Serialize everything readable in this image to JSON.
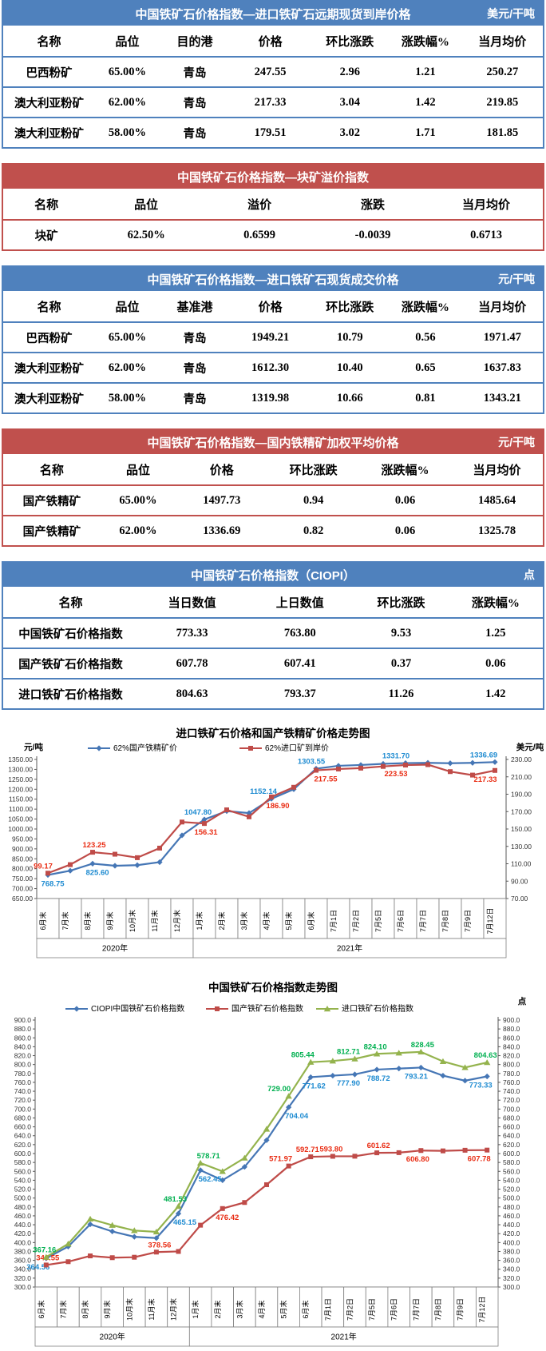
{
  "report": {
    "colors": {
      "blue_theme": "#4f81bd",
      "red_theme": "#c0504d"
    },
    "tables": [
      {
        "theme": "blue",
        "title": "中国铁矿石价格指数—进口铁矿石远期现货到岸价格",
        "unit": "美元/干吨",
        "headers": [
          "名称",
          "品位",
          "目的港",
          "价格",
          "环比涨跌",
          "涨跌幅%",
          "当月均价"
        ],
        "rows": [
          [
            "巴西粉矿",
            "65.00%",
            "青岛",
            "247.55",
            "2.96",
            "1.21",
            "250.27"
          ],
          [
            "澳大利亚粉矿",
            "62.00%",
            "青岛",
            "217.33",
            "3.04",
            "1.42",
            "219.85"
          ],
          [
            "澳大利亚粉矿",
            "58.00%",
            "青岛",
            "179.51",
            "3.02",
            "1.71",
            "181.85"
          ]
        ]
      },
      {
        "theme": "red",
        "title": "中国铁矿石价格指数—块矿溢价指数",
        "unit": "",
        "headers": [
          "名称",
          "品位",
          "溢价",
          "涨跌",
          "当月均价"
        ],
        "rows": [
          [
            "块矿",
            "62.50%",
            "0.6599",
            "-0.0039",
            "0.6713"
          ]
        ]
      },
      {
        "theme": "blue",
        "title": "中国铁矿石价格指数—进口铁矿石现货成交价格",
        "unit": "元/干吨",
        "headers": [
          "名称",
          "品位",
          "基准港",
          "价格",
          "环比涨跌",
          "涨跌幅%",
          "当月均价"
        ],
        "rows": [
          [
            "巴西粉矿",
            "65.00%",
            "青岛",
            "1949.21",
            "10.79",
            "0.56",
            "1971.47"
          ],
          [
            "澳大利亚粉矿",
            "62.00%",
            "青岛",
            "1612.30",
            "10.40",
            "0.65",
            "1637.83"
          ],
          [
            "澳大利亚粉矿",
            "58.00%",
            "青岛",
            "1319.98",
            "10.66",
            "0.81",
            "1343.21"
          ]
        ]
      },
      {
        "theme": "red",
        "title": "中国铁矿石价格指数—国内铁精矿加权平均价格",
        "unit": "元/干吨",
        "headers": [
          "名称",
          "品位",
          "价格",
          "环比涨跌",
          "涨跌幅%",
          "当月均价"
        ],
        "rows": [
          [
            "国产铁精矿",
            "65.00%",
            "1497.73",
            "0.94",
            "0.06",
            "1485.64"
          ],
          [
            "国产铁精矿",
            "62.00%",
            "1336.69",
            "0.82",
            "0.06",
            "1325.78"
          ]
        ]
      },
      {
        "theme": "blue",
        "title": "中国铁矿石价格指数（CIOPI）",
        "unit": "点",
        "headers": [
          "名称",
          "当日数值",
          "上日数值",
          "环比涨跌",
          "涨跌幅%"
        ],
        "rows": [
          [
            "中国铁矿石价格指数",
            "773.33",
            "763.80",
            "9.53",
            "1.25"
          ],
          [
            "国产铁矿石价格指数",
            "607.78",
            "607.41",
            "0.37",
            "0.06"
          ],
          [
            "进口铁矿石价格指数",
            "804.63",
            "793.37",
            "11.26",
            "1.42"
          ]
        ]
      }
    ]
  },
  "chart_data": [
    {
      "type": "line",
      "title": "进口铁矿石价格和国产铁精矿价格走势图",
      "unit_left": "元/吨",
      "unit_right": "美元/吨",
      "left_axis": {
        "min": 650,
        "max": 1350,
        "step": 50,
        "decimals": 2
      },
      "right_axis": {
        "min": 70,
        "max": 230,
        "step": 20,
        "decimals": 2
      },
      "legend_position": "top",
      "grid": false,
      "categories": [
        "6月末",
        "7月末",
        "8月末",
        "9月末",
        "10月末",
        "11月末",
        "12月末",
        "1月末",
        "2月末",
        "3月末",
        "4月末",
        "5月末",
        "6月末",
        "7月1日",
        "7月2日",
        "7月5日",
        "7月6日",
        "7月7日",
        "7月8日",
        "7月9日",
        "7月12日"
      ],
      "year_groups": [
        {
          "label": "2020年",
          "span": 7
        },
        {
          "label": "2021年",
          "span": 14
        }
      ],
      "series": [
        {
          "name": "62%国产铁精矿价",
          "axis": "left",
          "marker": "diamond",
          "color": "#4576b5",
          "label_color": "#1e8bd1",
          "values": [
            768.75,
            790,
            825.6,
            815,
            818,
            833,
            968,
            1047.8,
            1090,
            1080,
            1152.14,
            1200,
            1303.55,
            1318,
            1322,
            1328,
            1331.7,
            1333,
            1331,
            1333,
            1336.69
          ],
          "labels": [
            {
              "i": 0,
              "text": "768.75",
              "pos": "below",
              "dx": 6
            },
            {
              "i": 2,
              "text": "825.60",
              "pos": "below",
              "dx": 6
            },
            {
              "i": 7,
              "text": "1047.80",
              "pos": "above",
              "dx": -8
            },
            {
              "i": 10,
              "text": "1152.14",
              "pos": "above",
              "dx": -10
            },
            {
              "i": 12,
              "text": "1303.55",
              "pos": "above",
              "dx": -6
            },
            {
              "i": 16,
              "text": "1331.70",
              "pos": "above",
              "dx": -12
            },
            {
              "i": 20,
              "text": "1336.69",
              "pos": "above",
              "dx": -14
            }
          ]
        },
        {
          "name": "62%进口矿到岸价",
          "axis": "right",
          "marker": "square",
          "color": "#bf4b48",
          "label_color": "#e92c13",
          "values": [
            99.17,
            109,
            123.25,
            121,
            117,
            128,
            158,
            156.31,
            172,
            164,
            186.9,
            198,
            217.55,
            219,
            220,
            222,
            223.53,
            224,
            216,
            212,
            217.33
          ],
          "labels": [
            {
              "i": 0,
              "text": "99.17",
              "pos": "above",
              "dx": -6
            },
            {
              "i": 2,
              "text": "123.25",
              "pos": "above",
              "dx": 2
            },
            {
              "i": 7,
              "text": "156.31",
              "pos": "below",
              "dx": 2
            },
            {
              "i": 10,
              "text": "186.90",
              "pos": "below",
              "dx": 8
            },
            {
              "i": 12,
              "text": "217.55",
              "pos": "below",
              "dx": 12
            },
            {
              "i": 16,
              "text": "223.53",
              "pos": "below",
              "dx": -12
            },
            {
              "i": 20,
              "text": "217.33",
              "pos": "below",
              "dx": -12
            }
          ]
        }
      ]
    },
    {
      "type": "line",
      "title": "中国铁矿石价格指数走势图",
      "unit_left": "",
      "unit_right": "点",
      "left_axis": {
        "min": 300,
        "max": 900,
        "step": 20,
        "decimals": 1
      },
      "right_axis": {
        "min": 300,
        "max": 900,
        "step": 20,
        "decimals": 1
      },
      "legend_position": "top",
      "grid": false,
      "categories": [
        "6月末",
        "7月末",
        "8月末",
        "9月末",
        "10月末",
        "11月末",
        "12月末",
        "1月末",
        "2月末",
        "3月末",
        "4月末",
        "5月末",
        "6月末",
        "7月1日",
        "7月2日",
        "7月5日",
        "7月6日",
        "7月7日",
        "7月8日",
        "7月9日",
        "7月12日"
      ],
      "year_groups": [
        {
          "label": "2020年",
          "span": 7
        },
        {
          "label": "2021年",
          "span": 14
        }
      ],
      "series": [
        {
          "name": "CIOPI中国铁矿石价格指数",
          "axis": "left",
          "marker": "diamond",
          "color": "#4576b5",
          "label_color": "#1e8bd1",
          "values": [
            364.56,
            391,
            441,
            425,
            413,
            410,
            465.15,
            562.45,
            540,
            570,
            630,
            704.04,
            771.62,
            775,
            777.9,
            788.72,
            791,
            793.21,
            775,
            763.8,
            773.33
          ],
          "labels": [
            {
              "i": 0,
              "text": "364.56",
              "pos": "below",
              "dx": -10
            },
            {
              "i": 6,
              "text": "465.15",
              "pos": "below",
              "dx": 8
            },
            {
              "i": 7,
              "text": "562.45",
              "pos": "below",
              "dx": 12
            },
            {
              "i": 11,
              "text": "704.04",
              "pos": "below",
              "dx": 10
            },
            {
              "i": 12,
              "text": "771.62",
              "pos": "below",
              "dx": 4
            },
            {
              "i": 14,
              "text": "777.90",
              "pos": "below",
              "dx": -8
            },
            {
              "i": 15,
              "text": "788.72",
              "pos": "below",
              "dx": 2
            },
            {
              "i": 17,
              "text": "793.21",
              "pos": "below",
              "dx": -6
            },
            {
              "i": 20,
              "text": "773.33",
              "pos": "below",
              "dx": -8
            }
          ]
        },
        {
          "name": "国产铁矿石价格指数",
          "axis": "left",
          "marker": "square",
          "color": "#bf4b48",
          "label_color": "#e92c13",
          "values": [
            349.55,
            357,
            370,
            366,
            367,
            378.56,
            380,
            439,
            476.42,
            490,
            530,
            571.97,
            592.71,
            593.8,
            594,
            601.62,
            602,
            606.8,
            606,
            607.41,
            607.78
          ],
          "labels": [
            {
              "i": 0,
              "text": "349.55",
              "pos": "above",
              "dx": 2
            },
            {
              "i": 5,
              "text": "378.56",
              "pos": "above",
              "dx": 4
            },
            {
              "i": 8,
              "text": "476.42",
              "pos": "below",
              "dx": 6
            },
            {
              "i": 11,
              "text": "571.97",
              "pos": "above",
              "dx": -10
            },
            {
              "i": 12,
              "text": "592.71",
              "pos": "above",
              "dx": -4
            },
            {
              "i": 13,
              "text": "593.80",
              "pos": "above",
              "dx": -2
            },
            {
              "i": 15,
              "text": "601.62",
              "pos": "above",
              "dx": 2
            },
            {
              "i": 17,
              "text": "606.80",
              "pos": "below",
              "dx": -4
            },
            {
              "i": 20,
              "text": "607.78",
              "pos": "below",
              "dx": -10
            }
          ]
        },
        {
          "name": "进口铁矿石价格指数",
          "axis": "left",
          "marker": "triangle",
          "color": "#94b34d",
          "label_color": "#00b050",
          "values": [
            367.16,
            397,
            453,
            439,
            427,
            424,
            481.53,
            578.71,
            560,
            590,
            655,
            729.0,
            805.44,
            808,
            812.71,
            824.1,
            826,
            828.45,
            807,
            793.37,
            804.63
          ],
          "labels": [
            {
              "i": 0,
              "text": "367.16",
              "pos": "above",
              "dx": -2
            },
            {
              "i": 6,
              "text": "481.53",
              "pos": "above",
              "dx": -4
            },
            {
              "i": 7,
              "text": "578.71",
              "pos": "above",
              "dx": 10
            },
            {
              "i": 11,
              "text": "729.00",
              "pos": "above",
              "dx": -12
            },
            {
              "i": 12,
              "text": "805.44",
              "pos": "above",
              "dx": -10
            },
            {
              "i": 14,
              "text": "812.71",
              "pos": "above",
              "dx": -8
            },
            {
              "i": 15,
              "text": "824.10",
              "pos": "above",
              "dx": -2
            },
            {
              "i": 17,
              "text": "828.45",
              "pos": "above",
              "dx": 2
            },
            {
              "i": 20,
              "text": "804.63",
              "pos": "above",
              "dx": -2
            }
          ]
        }
      ]
    }
  ]
}
